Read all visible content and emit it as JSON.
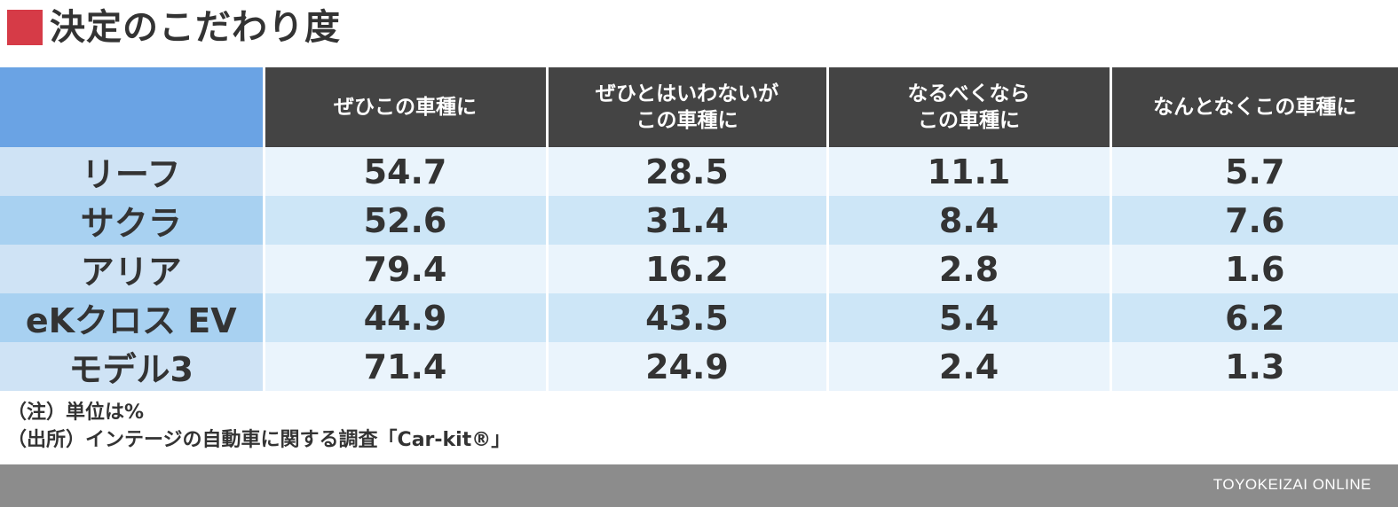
{
  "title": "決定のこだわり度",
  "chart_data": {
    "type": "table",
    "title": "決定のこだわり度",
    "columns": [
      "ぜひこの車種に",
      "ぜひとはいわないが\nこの車種に",
      "なるべくなら\nこの車種に",
      "なんとなくこの車種に"
    ],
    "rows": [
      {
        "label": "リーフ",
        "values": [
          "54.7",
          "28.5",
          "11.1",
          "5.7"
        ]
      },
      {
        "label": "サクラ",
        "values": [
          "52.6",
          "31.4",
          "8.4",
          "7.6"
        ]
      },
      {
        "label": "アリア",
        "values": [
          "79.4",
          "16.2",
          "2.8",
          "1.6"
        ]
      },
      {
        "label": "eKクロス EV",
        "values": [
          "44.9",
          "43.5",
          "5.4",
          "6.2"
        ]
      },
      {
        "label": "モデル3",
        "values": [
          "71.4",
          "24.9",
          "2.4",
          "1.3"
        ]
      }
    ]
  },
  "notes": {
    "unit": "（注）単位は%",
    "source": "（出所）インテージの自動車に関する調査「Car-kit®」"
  },
  "footer": {
    "brand": "TOYOKEIZAI ONLINE"
  },
  "colors": {
    "title_square": "#d63b47",
    "corner": "#6aa3e4",
    "header_bg": "#444444",
    "footer_bg": "#8c8c8c"
  }
}
